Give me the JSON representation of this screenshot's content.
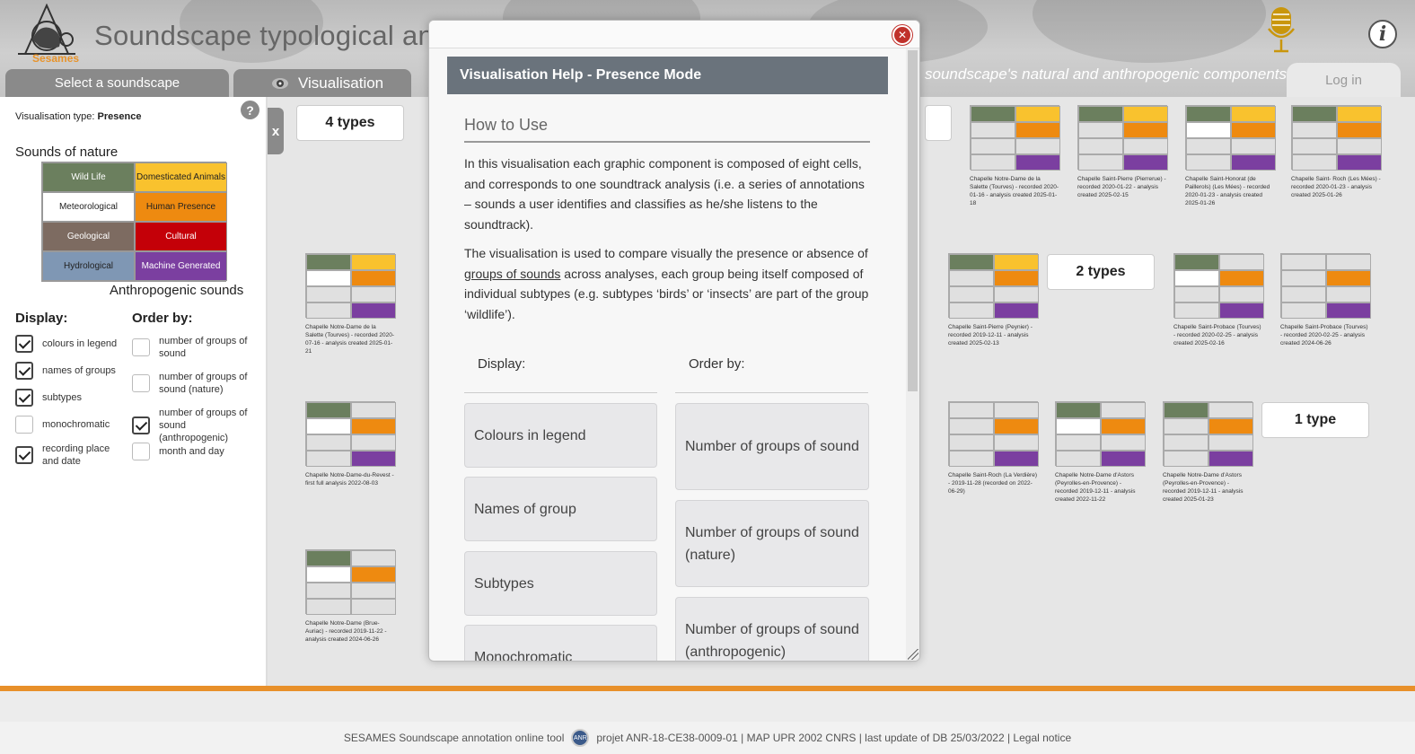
{
  "header": {
    "logo_text": "Sesames",
    "title": "Soundscape typological ana",
    "tabs": [
      {
        "label": "Select a soundscape"
      },
      {
        "label": "Visualisation"
      }
    ],
    "tagline": "soundscape's natural and anthropogenic components",
    "login_label": "Log in",
    "info_label": "i"
  },
  "panel": {
    "vis_type_label": "Visualisation type:",
    "vis_type_value": "Presence",
    "help_label": "?",
    "close_label": "x",
    "nature_title": "Sounds of nature",
    "anthro_title": "Anthropogenic sounds",
    "legend": [
      {
        "label": "Wild Life",
        "color": "#6b7f5e",
        "text_color": "#ffffff"
      },
      {
        "label": "Domesticated Animals",
        "color": "#f9c22e",
        "text_color": "#222222"
      },
      {
        "label": "Meteorological",
        "color": "#ffffff",
        "text_color": "#222222"
      },
      {
        "label": "Human Presence",
        "color": "#ee8a10",
        "text_color": "#222222"
      },
      {
        "label": "Geological",
        "color": "#7d6b61",
        "text_color": "#ffffff"
      },
      {
        "label": "Cultural",
        "color": "#c40008",
        "text_color": "#ffffff"
      },
      {
        "label": "Hydrological",
        "color": "#7f97b4",
        "text_color": "#222222"
      },
      {
        "label": "Machine Generated",
        "color": "#7b3fa0",
        "text_color": "#ffffff"
      }
    ],
    "display_title": "Display:",
    "order_title": "Order by:",
    "display_options": [
      {
        "label": "colours in legend",
        "checked": true
      },
      {
        "label": "names of groups",
        "checked": true
      },
      {
        "label": "subtypes",
        "checked": true
      },
      {
        "label": "monochromatic",
        "checked": false
      },
      {
        "label": "recording place and date",
        "checked": true
      }
    ],
    "order_options": [
      {
        "label": "number of groups of sound",
        "checked": false
      },
      {
        "label": "number of groups of sound (nature)",
        "checked": false
      },
      {
        "label": "number of groups of sound (anthropogenic)",
        "checked": true
      },
      {
        "label": "month and day",
        "checked": false
      }
    ]
  },
  "type_groups": [
    "4 types",
    "2 types",
    "1 type"
  ],
  "thumbnails": [
    {
      "caption": "Chapelle Notre-Dame de la Salette (Tourves) - recorded 2020-01-16 - analysis created 2025-01-18",
      "cells": [
        "#6b7f5e",
        "#f9c22e",
        "#e0e0e0",
        "#ee8a10",
        "#e0e0e0",
        "#e0e0e0",
        "#e0e0e0",
        "#7b3fa0"
      ]
    },
    {
      "caption": "Chapelle Saint-Pierre (Pierrerue) - recorded 2020-01-22 - analysis created 2025-02-15",
      "cells": [
        "#6b7f5e",
        "#f9c22e",
        "#e0e0e0",
        "#ee8a10",
        "#e0e0e0",
        "#e0e0e0",
        "#e0e0e0",
        "#7b3fa0"
      ]
    },
    {
      "caption": "Chapelle Saint-Honorat (de Paillerols) (Les Mées) - recorded 2020-01-23 - analysis created 2025-01-26",
      "cells": [
        "#6b7f5e",
        "#f9c22e",
        "#ffffff",
        "#ee8a10",
        "#e0e0e0",
        "#e0e0e0",
        "#e0e0e0",
        "#7b3fa0"
      ]
    },
    {
      "caption": "Chapelle Saint- Roch (Les Mées) - recorded 2020-01-23 - analysis created 2025-01-26",
      "cells": [
        "#6b7f5e",
        "#f9c22e",
        "#e0e0e0",
        "#ee8a10",
        "#e0e0e0",
        "#e0e0e0",
        "#e0e0e0",
        "#7b3fa0"
      ]
    },
    {
      "caption": "Chapelle Notre-Dame de la Salette (Tourves) - recorded 2020-07-16 - analysis created 2025-01-21",
      "cells": [
        "#6b7f5e",
        "#f9c22e",
        "#ffffff",
        "#ee8a10",
        "#e0e0e0",
        "#e0e0e0",
        "#e0e0e0",
        "#7b3fa0"
      ]
    },
    {
      "caption": "Chapelle Saint-Pierre (Peynier) - recorded 2019-12-11 - analysis created 2025-02-13",
      "cells": [
        "#6b7f5e",
        "#f9c22e",
        "#e0e0e0",
        "#ee8a10",
        "#e0e0e0",
        "#e0e0e0",
        "#e0e0e0",
        "#7b3fa0"
      ]
    },
    {
      "caption": "Chapelle Saint-Probace (Tourves) - recorded 2020-02-25 - analysis created 2025-02-16",
      "cells": [
        "#6b7f5e",
        "#e0e0e0",
        "#ffffff",
        "#ee8a10",
        "#e0e0e0",
        "#e0e0e0",
        "#e0e0e0",
        "#7b3fa0"
      ]
    },
    {
      "caption": "Chapelle Saint-Probace (Tourves) - recorded 2020-02-25 - analysis created 2024-06-26",
      "cells": [
        "#e0e0e0",
        "#e0e0e0",
        "#e0e0e0",
        "#ee8a10",
        "#e0e0e0",
        "#e0e0e0",
        "#e0e0e0",
        "#7b3fa0"
      ]
    },
    {
      "caption": "Chapelle Notre-Dame-du-Revest - first full analysis 2022-08-03",
      "cells": [
        "#6b7f5e",
        "#e0e0e0",
        "#ffffff",
        "#ee8a10",
        "#e0e0e0",
        "#e0e0e0",
        "#e0e0e0",
        "#7b3fa0"
      ]
    },
    {
      "caption": "Chapelle Saint-Roch (La Verdière) - 2019-11-28 (recorded on 2022-06-29)",
      "cells": [
        "#e0e0e0",
        "#e0e0e0",
        "#e0e0e0",
        "#ee8a10",
        "#e0e0e0",
        "#e0e0e0",
        "#e0e0e0",
        "#7b3fa0"
      ]
    },
    {
      "caption": "Chapelle Notre-Dame d'Astors (Peyrolles-en-Provence) - recorded 2019-12-11 - analysis created 2022-11-22",
      "cells": [
        "#6b7f5e",
        "#e0e0e0",
        "#ffffff",
        "#ee8a10",
        "#e0e0e0",
        "#e0e0e0",
        "#e0e0e0",
        "#7b3fa0"
      ]
    },
    {
      "caption": "Chapelle Notre-Dame d'Astors (Peyrolles-en-Provence) - recorded 2019-12-11 - analysis created 2025-01-23",
      "cells": [
        "#6b7f5e",
        "#e0e0e0",
        "#e0e0e0",
        "#ee8a10",
        "#e0e0e0",
        "#e0e0e0",
        "#e0e0e0",
        "#7b3fa0"
      ]
    },
    {
      "caption": "Chapelle Notre-Dame (Brue-Auriac) - recorded 2019-11-22 - analysis created 2024-06-26",
      "cells": [
        "#6b7f5e",
        "#e0e0e0",
        "#ffffff",
        "#ee8a10",
        "#e0e0e0",
        "#e0e0e0",
        "#e0e0e0",
        "#e0e0e0"
      ]
    }
  ],
  "modal": {
    "header": "Visualisation Help - Presence Mode",
    "subtitle": "How to Use",
    "para1": "In this visualisation each graphic component is composed of eight cells, and corresponds to one soundtrack analysis (i.e. a series of annotations – sounds a user identifies and classifies as he/she listens to the soundtrack).",
    "para2_before": "The visualisation is used to compare visually the presence or absence of ",
    "para2_link": "groups of sounds",
    "para2_after": " across analyses, each group being itself composed of individual subtypes (e.g. subtypes ‘birds’ or ‘insects’ are part of the group ‘wildlife’).",
    "display_title": "Display:",
    "order_title": "Order by:",
    "display_buttons": [
      "Colours in legend",
      "Names of group",
      "Subtypes",
      "Monochromatic"
    ],
    "order_buttons": [
      "Number of groups of sound",
      "Number of groups of sound (nature)",
      "Number of groups of sound (anthropogenic)"
    ],
    "close_label": "✕"
  },
  "footer": {
    "left": "SESAMES Soundscape annotation online tool",
    "badge": "ANR",
    "right": "projet ANR-18-CE38-0009-01 | MAP UPR 2002 CNRS | last update of DB 25/03/2022 | Legal notice"
  }
}
